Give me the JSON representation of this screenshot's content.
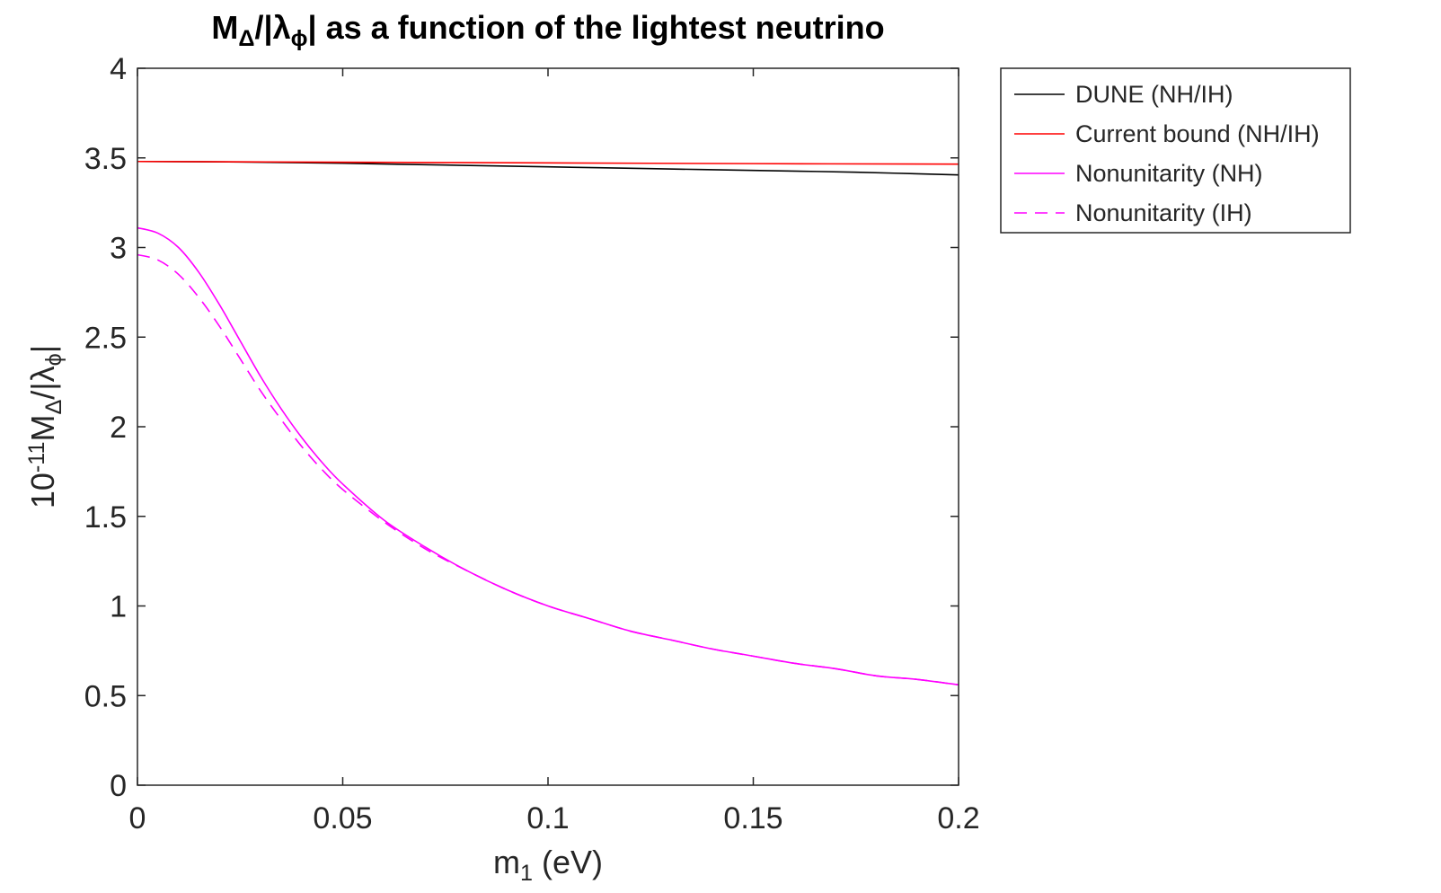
{
  "chart_data": {
    "type": "line",
    "title": {
      "parts": [
        {
          "text": "M",
          "shift": "none"
        },
        {
          "text": "Δ",
          "shift": "sub"
        },
        {
          "text": "/|λ",
          "shift": "none"
        },
        {
          "text": "ϕ",
          "shift": "sub"
        },
        {
          "text": "| as a function of the lightest neutrino",
          "shift": "none"
        }
      ]
    },
    "xlabel": {
      "parts": [
        {
          "text": "m",
          "shift": "none"
        },
        {
          "text": "1",
          "shift": "sub"
        },
        {
          "text": " (eV)",
          "shift": "none"
        }
      ]
    },
    "ylabel": {
      "parts": [
        {
          "text": "10",
          "shift": "none"
        },
        {
          "text": "-11",
          "shift": "super"
        },
        {
          "text": "M",
          "shift": "none"
        },
        {
          "text": "Δ",
          "shift": "sub"
        },
        {
          "text": "/|λ",
          "shift": "none"
        },
        {
          "text": "ϕ",
          "shift": "sub"
        },
        {
          "text": "|",
          "shift": "none"
        }
      ]
    },
    "xlim": [
      0,
      0.2
    ],
    "ylim": [
      0,
      4
    ],
    "xticks": [
      0,
      0.05,
      0.1,
      0.15,
      0.2
    ],
    "xtick_labels": [
      "0",
      "0.05",
      "0.1",
      "0.15",
      "0.2"
    ],
    "yticks": [
      0,
      0.5,
      1,
      1.5,
      2,
      2.5,
      3,
      3.5,
      4
    ],
    "ytick_labels": [
      "0",
      "0.5",
      "1",
      "1.5",
      "2",
      "2.5",
      "3",
      "3.5",
      "4"
    ],
    "grid": false,
    "legend_position": "outside-top-right",
    "series": [
      {
        "name": "DUNE (NH/IH)",
        "color": "#000000",
        "dash": "solid",
        "x": [
          0,
          0.025,
          0.05,
          0.075,
          0.1,
          0.125,
          0.15,
          0.175,
          0.2
        ],
        "y": [
          3.48,
          3.477,
          3.47,
          3.46,
          3.45,
          3.44,
          3.43,
          3.42,
          3.405
        ]
      },
      {
        "name": "Current bound (NH/IH)",
        "color": "#ff0000",
        "dash": "solid",
        "x": [
          0,
          0.05,
          0.1,
          0.15,
          0.2
        ],
        "y": [
          3.48,
          3.476,
          3.472,
          3.468,
          3.465
        ]
      },
      {
        "name": "Nonunitarity (NH)",
        "color": "#ff00ff",
        "dash": "solid",
        "x": [
          0,
          0.005,
          0.01,
          0.015,
          0.02,
          0.025,
          0.03,
          0.035,
          0.04,
          0.045,
          0.05,
          0.06,
          0.07,
          0.08,
          0.09,
          0.1,
          0.11,
          0.12,
          0.13,
          0.14,
          0.15,
          0.16,
          0.17,
          0.18,
          0.19,
          0.2
        ],
        "y": [
          3.11,
          3.08,
          3.0,
          2.86,
          2.68,
          2.48,
          2.28,
          2.1,
          1.94,
          1.8,
          1.68,
          1.48,
          1.33,
          1.2,
          1.09,
          1.0,
          0.93,
          0.86,
          0.81,
          0.76,
          0.72,
          0.68,
          0.65,
          0.61,
          0.59,
          0.56
        ]
      },
      {
        "name": "Nonunitarity (IH)",
        "color": "#ff00ff",
        "dash": "dashed",
        "x": [
          0,
          0.005,
          0.01,
          0.015,
          0.02,
          0.025,
          0.03,
          0.035,
          0.04,
          0.045,
          0.05,
          0.06,
          0.07,
          0.08,
          0.09,
          0.1,
          0.11,
          0.12,
          0.13,
          0.14,
          0.15,
          0.16,
          0.17,
          0.18,
          0.19,
          0.2
        ],
        "y": [
          2.96,
          2.93,
          2.85,
          2.72,
          2.56,
          2.38,
          2.2,
          2.04,
          1.89,
          1.76,
          1.65,
          1.47,
          1.32,
          1.2,
          1.09,
          1.0,
          0.93,
          0.86,
          0.81,
          0.76,
          0.72,
          0.68,
          0.65,
          0.61,
          0.59,
          0.56
        ]
      }
    ]
  }
}
